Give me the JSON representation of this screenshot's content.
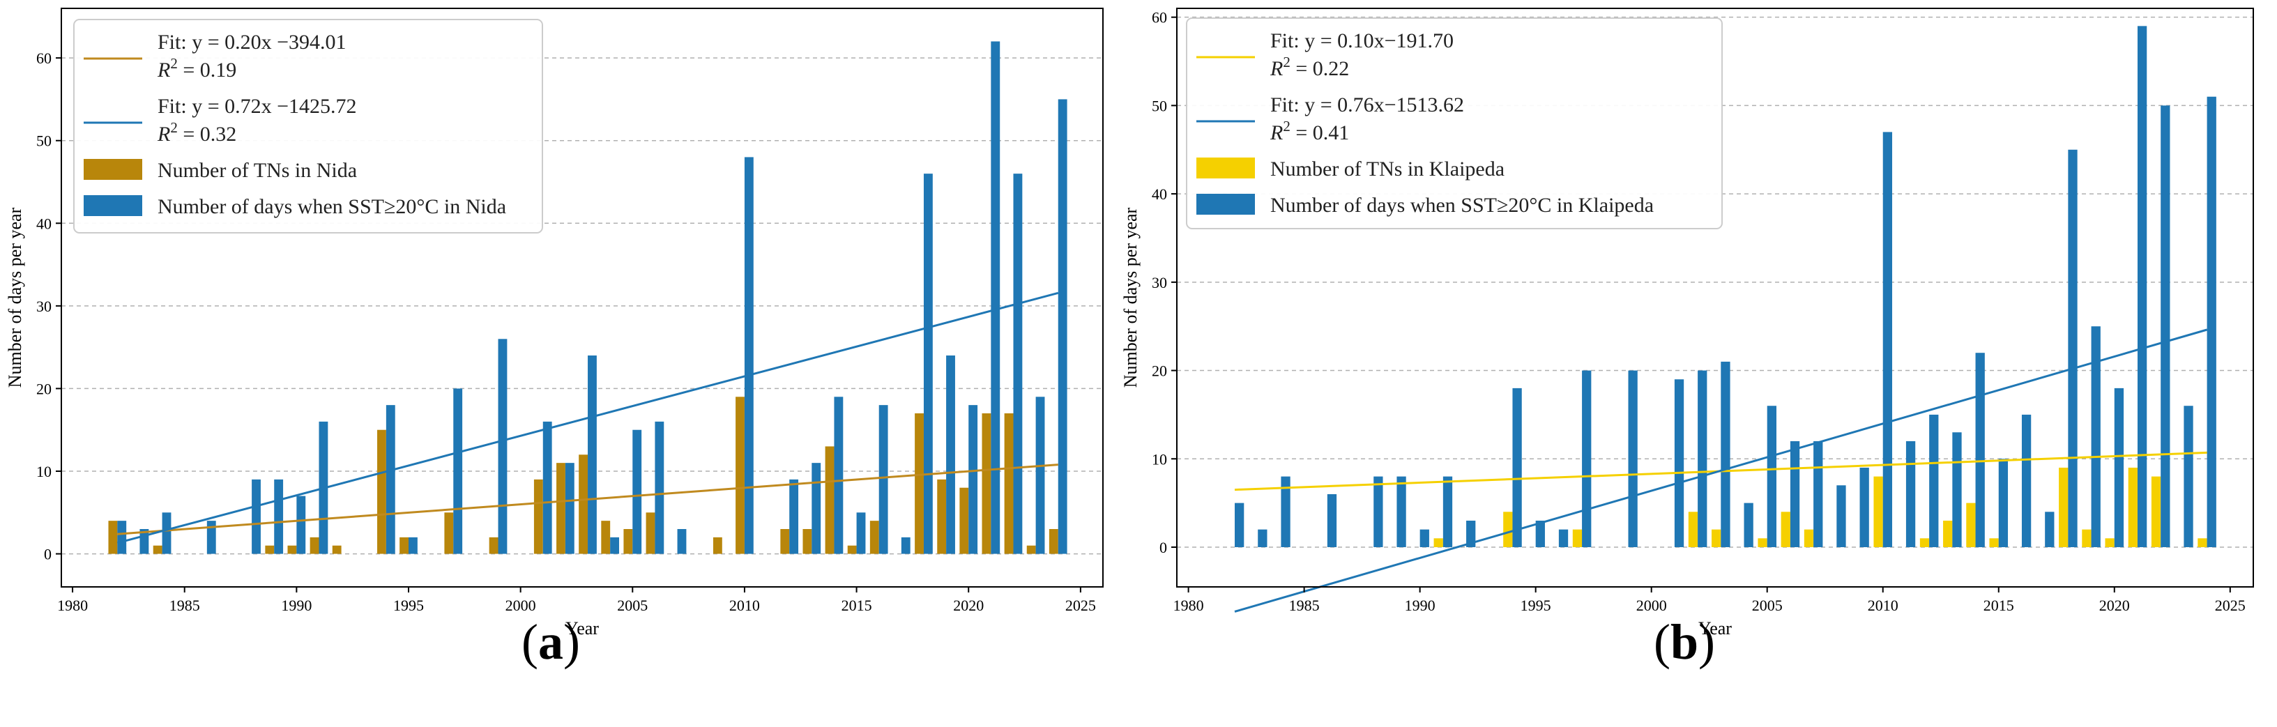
{
  "panels": [
    {
      "label_open": "(",
      "label_letter": "a",
      "label_close": ")"
    },
    {
      "label_open": "(",
      "label_letter": "b",
      "label_close": ")"
    }
  ],
  "chart_data": [
    {
      "type": "bar",
      "title": "",
      "xlabel": "Year",
      "ylabel": "Number of days per year",
      "xlim": [
        1979.5,
        2026
      ],
      "ylim": [
        -4,
        66
      ],
      "xticks": [
        1980,
        1985,
        1990,
        1995,
        2000,
        2005,
        2010,
        2015,
        2020,
        2025
      ],
      "yticks": [
        0,
        10,
        20,
        30,
        40,
        50,
        60
      ],
      "grid": "horizontal dashed",
      "legend_position": "top-left",
      "categories": [
        1982,
        1983,
        1984,
        1985,
        1986,
        1987,
        1988,
        1989,
        1990,
        1991,
        1992,
        1993,
        1994,
        1995,
        1996,
        1997,
        1998,
        1999,
        2000,
        2001,
        2002,
        2003,
        2004,
        2005,
        2006,
        2007,
        2008,
        2009,
        2010,
        2011,
        2012,
        2013,
        2014,
        2015,
        2016,
        2017,
        2018,
        2019,
        2020,
        2021,
        2022,
        2023,
        2024
      ],
      "series": [
        {
          "name": "Number of TNs in Nida",
          "color": "#b8860b",
          "values": [
            4,
            0,
            1,
            0,
            0,
            0,
            0,
            1,
            1,
            2,
            1,
            0,
            15,
            2,
            0,
            5,
            0,
            2,
            0,
            9,
            11,
            12,
            4,
            3,
            5,
            0,
            0,
            2,
            19,
            0,
            3,
            3,
            13,
            1,
            4,
            0,
            17,
            9,
            8,
            17,
            17,
            1,
            3
          ]
        },
        {
          "name": "Number of days when SST≥20°C in Nida",
          "color": "#1f77b4",
          "values": [
            4,
            3,
            5,
            0,
            4,
            0,
            9,
            9,
            7,
            16,
            0,
            0,
            18,
            2,
            0,
            20,
            0,
            26,
            0,
            16,
            11,
            24,
            2,
            15,
            16,
            3,
            0,
            0,
            48,
            0,
            9,
            11,
            19,
            5,
            18,
            2,
            46,
            24,
            18,
            62,
            46,
            19,
            55
          ]
        }
      ],
      "fits": [
        {
          "label": "Fit: y = 0.20x −394.01",
          "r2_label": "= 0.19",
          "slope": 0.2,
          "intercept": -394.01,
          "x_range": [
            1982,
            2024
          ],
          "color": "#c08a1f"
        },
        {
          "label": "Fit: y = 0.72x −1425.72",
          "r2_label": "= 0.32",
          "slope": 0.72,
          "intercept": -1425.72,
          "x_range": [
            1982,
            2024
          ],
          "color": "#1f77b4"
        }
      ]
    },
    {
      "type": "bar",
      "title": "",
      "xlabel": "Year",
      "ylabel": "Number of days per year",
      "xlim": [
        1979.5,
        2026
      ],
      "ylim": [
        -4.5,
        61
      ],
      "xticks": [
        1980,
        1985,
        1990,
        1995,
        2000,
        2005,
        2010,
        2015,
        2020,
        2025
      ],
      "yticks": [
        0,
        10,
        20,
        30,
        40,
        50,
        60
      ],
      "grid": "horizontal dashed",
      "legend_position": "top-left",
      "categories": [
        1982,
        1983,
        1984,
        1985,
        1986,
        1987,
        1988,
        1989,
        1990,
        1991,
        1992,
        1993,
        1994,
        1995,
        1996,
        1997,
        1998,
        1999,
        2000,
        2001,
        2002,
        2003,
        2004,
        2005,
        2006,
        2007,
        2008,
        2009,
        2010,
        2011,
        2012,
        2013,
        2014,
        2015,
        2016,
        2017,
        2018,
        2019,
        2020,
        2021,
        2022,
        2023,
        2024
      ],
      "series": [
        {
          "name": "Number of TNs in Klaipeda",
          "color": "#f5d000",
          "values": [
            0,
            0,
            0,
            0,
            0,
            0,
            0,
            0,
            0,
            1,
            0,
            0,
            4,
            0,
            0,
            2,
            0,
            0,
            0,
            0,
            4,
            2,
            0,
            1,
            4,
            2,
            0,
            0,
            8,
            0,
            1,
            3,
            5,
            1,
            0,
            0,
            9,
            2,
            1,
            9,
            8,
            0,
            1
          ]
        },
        {
          "name": "Number of days when SST≥20°C in Klaipeda",
          "color": "#1f77b4",
          "values": [
            5,
            2,
            8,
            0,
            6,
            0,
            8,
            8,
            2,
            8,
            3,
            0,
            18,
            3,
            2,
            20,
            0,
            20,
            0,
            19,
            20,
            21,
            5,
            16,
            12,
            12,
            7,
            9,
            47,
            12,
            15,
            13,
            22,
            10,
            15,
            4,
            45,
            25,
            18,
            59,
            50,
            16,
            51
          ]
        }
      ],
      "fits": [
        {
          "label": "Fit: y = 0.10x−191.70",
          "r2_label": "= 0.22",
          "slope": 0.1,
          "intercept": -191.7,
          "x_range": [
            1982,
            2024
          ],
          "color": "#f5d000"
        },
        {
          "label": "Fit: y = 0.76x−1513.62",
          "r2_label": "= 0.41",
          "slope": 0.76,
          "intercept": -1513.62,
          "x_range": [
            1982,
            2024
          ],
          "color": "#1f77b4"
        }
      ]
    }
  ]
}
